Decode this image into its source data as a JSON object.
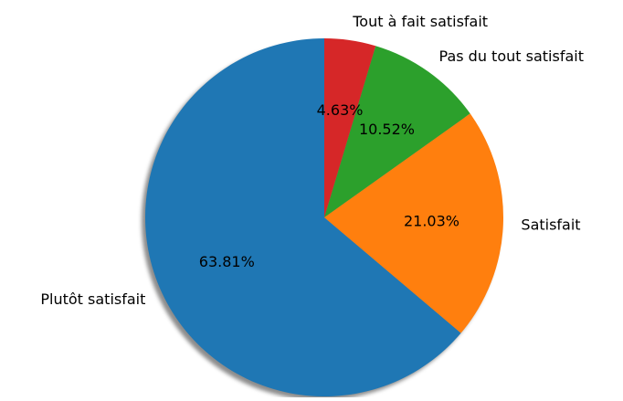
{
  "chart_data": {
    "type": "pie",
    "categories": [
      "Plutôt satisfait",
      "Satisfait",
      "Pas du tout satisfait",
      "Tout à fait satisfait"
    ],
    "values": [
      63.81,
      21.03,
      10.52,
      4.63
    ],
    "value_labels": [
      "63.81%",
      "21.03%",
      "10.52%",
      "4.63%"
    ],
    "colors": [
      "#1f77b4",
      "#ff7f0e",
      "#2ca02c",
      "#d62728"
    ],
    "start_angle": 90,
    "counterclockwise": true,
    "shadow": true
  }
}
